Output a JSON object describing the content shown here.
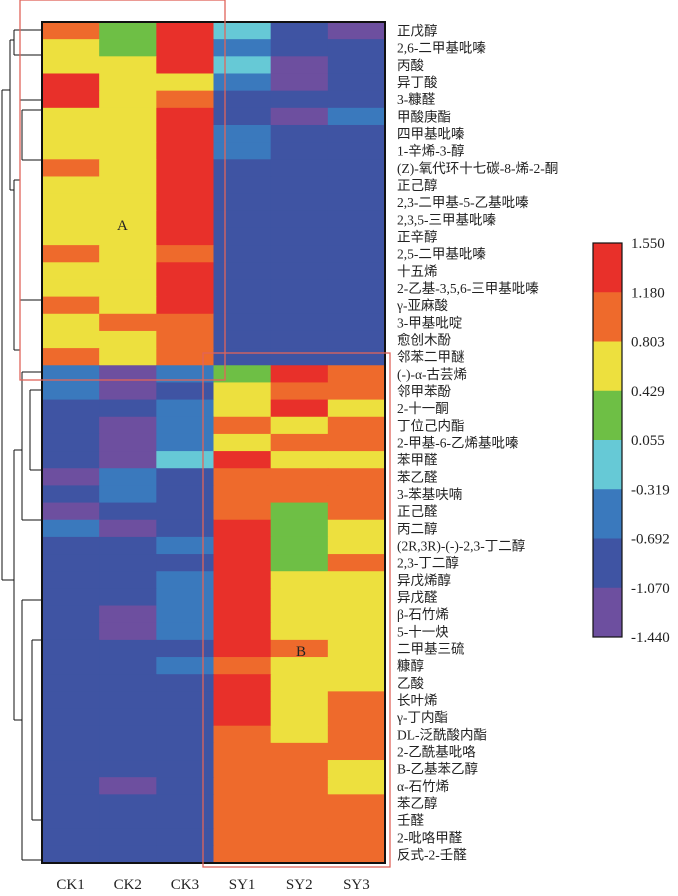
{
  "chart_data": {
    "type": "heatmap",
    "title": "",
    "columns": [
      "CK1",
      "CK2",
      "CK3",
      "SY1",
      "SY2",
      "SY3"
    ],
    "rows": [
      "正戊醇",
      "2,6-二甲基吡嗪",
      "丙酸",
      "异丁酸",
      "3-糠醛",
      "甲酸庚酯",
      "四甲基吡嗪",
      "1-辛烯-3-醇",
      "(Z)-氧代环十七碳-8-烯-2-酮",
      "正己醇",
      "2,3-二甲基-5-乙基吡嗪",
      "2,3,5-三甲基吡嗪",
      "正辛醇",
      "2,5-二甲基吡嗪",
      "十五烯",
      "2-乙基-3,5,6-三甲基吡嗪",
      "γ-亚麻酸",
      "3-甲基吡啶",
      "愈创木酚",
      "邻苯二甲醚",
      "(-)-α-古芸烯",
      "邻甲苯酚",
      "2-十一酮",
      "丁位己内酯",
      "2-甲基-6-乙烯基吡嗪",
      "苯甲醛",
      "苯乙醛",
      "3-苯基呋喃",
      "正己醛",
      "丙二醇",
      "(2R,3R)-(-)-2,3-丁二醇",
      "2,3-丁二醇",
      "异戊烯醇",
      "异戊醛",
      "β-石竹烯",
      "5-十一炔",
      "二甲基三硫",
      "糠醇",
      "乙酸",
      "长叶烯",
      "γ-丁内酯",
      "DL-泛酰酸内酯",
      "2-乙酰基吡咯",
      "B-乙基苯乙醇",
      "α-石竹烯",
      "苯乙醇",
      "壬醛",
      "2-吡咯甲醛",
      "反式-2-壬醛"
    ],
    "values": [
      [
        0.99,
        0.24,
        1.37,
        -0.13,
        -0.88,
        -1.26
      ],
      [
        0.62,
        0.24,
        1.37,
        -0.51,
        -0.88,
        -0.88
      ],
      [
        0.62,
        0.62,
        1.37,
        -0.13,
        -1.26,
        -0.88
      ],
      [
        1.37,
        0.62,
        0.62,
        -0.51,
        -1.26,
        -0.88
      ],
      [
        1.37,
        0.62,
        0.99,
        -0.88,
        -0.88,
        -0.88
      ],
      [
        0.62,
        0.62,
        1.37,
        -0.88,
        -1.26,
        -0.51
      ],
      [
        0.62,
        0.62,
        1.37,
        -0.51,
        -0.88,
        -0.88
      ],
      [
        0.62,
        0.62,
        1.37,
        -0.51,
        -0.88,
        -0.88
      ],
      [
        0.99,
        0.62,
        1.37,
        -0.88,
        -0.88,
        -0.88
      ],
      [
        0.62,
        0.62,
        1.37,
        -0.88,
        -0.88,
        -0.88
      ],
      [
        0.62,
        0.62,
        1.37,
        -0.88,
        -0.88,
        -0.88
      ],
      [
        0.62,
        0.62,
        1.37,
        -0.88,
        -0.88,
        -0.88
      ],
      [
        0.62,
        0.62,
        1.37,
        -0.88,
        -0.88,
        -0.88
      ],
      [
        0.99,
        0.62,
        0.99,
        -0.88,
        -0.88,
        -0.88
      ],
      [
        0.62,
        0.62,
        1.37,
        -0.88,
        -0.88,
        -0.88
      ],
      [
        0.62,
        0.62,
        1.37,
        -0.88,
        -0.88,
        -0.88
      ],
      [
        0.99,
        0.62,
        1.37,
        -0.88,
        -0.88,
        -0.88
      ],
      [
        0.62,
        0.99,
        0.99,
        -0.88,
        -0.88,
        -0.88
      ],
      [
        0.62,
        0.62,
        0.99,
        -0.88,
        -0.88,
        -0.88
      ],
      [
        0.99,
        0.62,
        0.99,
        -0.88,
        -0.88,
        -0.88
      ],
      [
        -0.51,
        -1.26,
        -0.51,
        0.24,
        1.37,
        0.99
      ],
      [
        -0.51,
        -1.26,
        -0.88,
        0.62,
        0.99,
        0.99
      ],
      [
        -0.88,
        -0.88,
        -0.51,
        0.62,
        1.37,
        0.62
      ],
      [
        -0.88,
        -1.26,
        -0.51,
        0.99,
        0.62,
        0.99
      ],
      [
        -0.88,
        -1.26,
        -0.51,
        0.62,
        0.99,
        0.99
      ],
      [
        -0.88,
        -1.26,
        -0.13,
        1.37,
        0.62,
        0.62
      ],
      [
        -1.26,
        -0.51,
        -0.88,
        0.99,
        0.99,
        0.99
      ],
      [
        -0.88,
        -0.51,
        -0.88,
        0.99,
        0.99,
        0.99
      ],
      [
        -1.26,
        -0.88,
        -0.88,
        0.99,
        0.24,
        0.99
      ],
      [
        -0.51,
        -1.26,
        -0.88,
        1.37,
        0.24,
        0.62
      ],
      [
        -0.88,
        -0.88,
        -0.51,
        1.37,
        0.24,
        0.62
      ],
      [
        -0.88,
        -0.88,
        -0.88,
        1.37,
        0.24,
        0.99
      ],
      [
        -0.88,
        -0.88,
        -0.51,
        1.37,
        0.62,
        0.62
      ],
      [
        -0.88,
        -0.88,
        -0.51,
        1.37,
        0.62,
        0.62
      ],
      [
        -0.88,
        -1.26,
        -0.51,
        1.37,
        0.62,
        0.62
      ],
      [
        -0.88,
        -1.26,
        -0.51,
        1.37,
        0.62,
        0.62
      ],
      [
        -0.88,
        -0.88,
        -0.88,
        1.37,
        0.99,
        0.62
      ],
      [
        -0.88,
        -0.88,
        -0.51,
        0.99,
        0.62,
        0.62
      ],
      [
        -0.88,
        -0.88,
        -0.88,
        1.37,
        0.62,
        0.62
      ],
      [
        -0.88,
        -0.88,
        -0.88,
        1.37,
        0.62,
        0.99
      ],
      [
        -0.88,
        -0.88,
        -0.88,
        1.37,
        0.62,
        0.99
      ],
      [
        -0.88,
        -0.88,
        -0.88,
        0.99,
        0.62,
        0.99
      ],
      [
        -0.88,
        -0.88,
        -0.88,
        0.99,
        0.99,
        0.99
      ],
      [
        -0.88,
        -0.88,
        -0.88,
        0.99,
        0.99,
        0.62
      ],
      [
        -0.88,
        -1.26,
        -0.88,
        0.99,
        0.99,
        0.62
      ],
      [
        -0.88,
        -0.88,
        -0.88,
        0.99,
        0.99,
        0.99
      ],
      [
        -0.88,
        -0.88,
        -0.88,
        0.99,
        0.99,
        0.99
      ],
      [
        -0.88,
        -0.88,
        -0.88,
        0.99,
        0.99,
        0.99
      ],
      [
        -0.88,
        -0.88,
        -0.88,
        0.99,
        0.99,
        0.99
      ]
    ],
    "colorbar": {
      "ticks": [
        "1.550",
        "1.180",
        "0.803",
        "0.429",
        "0.055",
        "-0.319",
        "-0.692",
        "-1.070",
        "-1.440"
      ],
      "tick_values": [
        1.55,
        1.18,
        0.803,
        0.429,
        0.055,
        -0.319,
        -0.692,
        -1.07,
        -1.44
      ],
      "colors": [
        "#e8302a",
        "#ee6a2c",
        "#ede03e",
        "#6ebf45",
        "#66c9d6",
        "#3a79bd",
        "#3f54a3",
        "#6d4f9f"
      ],
      "placement": "right"
    },
    "cluster_boxes": [
      {
        "label": "A",
        "color": "#e0645a"
      },
      {
        "label": "B",
        "color": "#e0645a"
      }
    ],
    "dendrogram": "rows"
  }
}
